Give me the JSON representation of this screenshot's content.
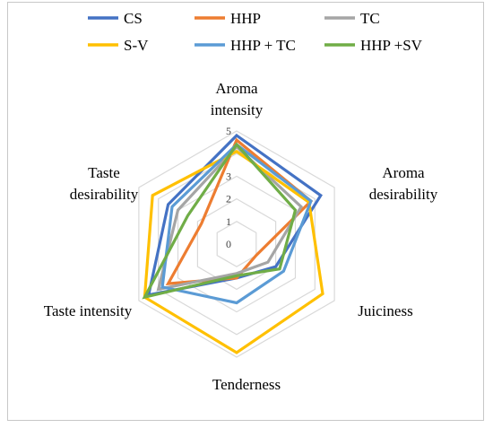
{
  "chart_data": {
    "type": "radar",
    "axes": [
      {
        "lines": [
          "Aroma",
          "intensity"
        ]
      },
      {
        "lines": [
          "Aroma",
          "desirability"
        ]
      },
      {
        "lines": [
          "Juiciness"
        ]
      },
      {
        "lines": [
          "Tenderness"
        ]
      },
      {
        "lines": [
          "Taste intensity"
        ]
      },
      {
        "lines": [
          "Taste",
          "desirability"
        ]
      }
    ],
    "range": [
      0,
      5
    ],
    "ticks": [
      0,
      1,
      2,
      3,
      4,
      5
    ],
    "grid": true,
    "legend_position": "top",
    "series": [
      {
        "name": "CS",
        "color": "#4472c4",
        "values": [
          4.8,
          4.3,
          2.0,
          1.5,
          4.5,
          3.5
        ]
      },
      {
        "name": "HHP",
        "color": "#ed7d31",
        "values": [
          4.6,
          3.8,
          1.0,
          1.5,
          3.5,
          1.8
        ]
      },
      {
        "name": "TC",
        "color": "#a5a5a5",
        "values": [
          4.3,
          3.3,
          1.6,
          1.3,
          4.0,
          3.0
        ]
      },
      {
        "name": "S-V",
        "color": "#ffc000",
        "values": [
          4.1,
          3.7,
          4.4,
          4.8,
          4.7,
          4.3
        ]
      },
      {
        "name": "HHP + TC",
        "color": "#5b9bd5",
        "values": [
          4.4,
          3.8,
          2.4,
          2.6,
          3.8,
          3.3
        ]
      },
      {
        "name": "HHP +SV",
        "color": "#70ad47",
        "values": [
          4.4,
          3.0,
          2.2,
          1.4,
          4.7,
          2.5
        ]
      }
    ]
  }
}
